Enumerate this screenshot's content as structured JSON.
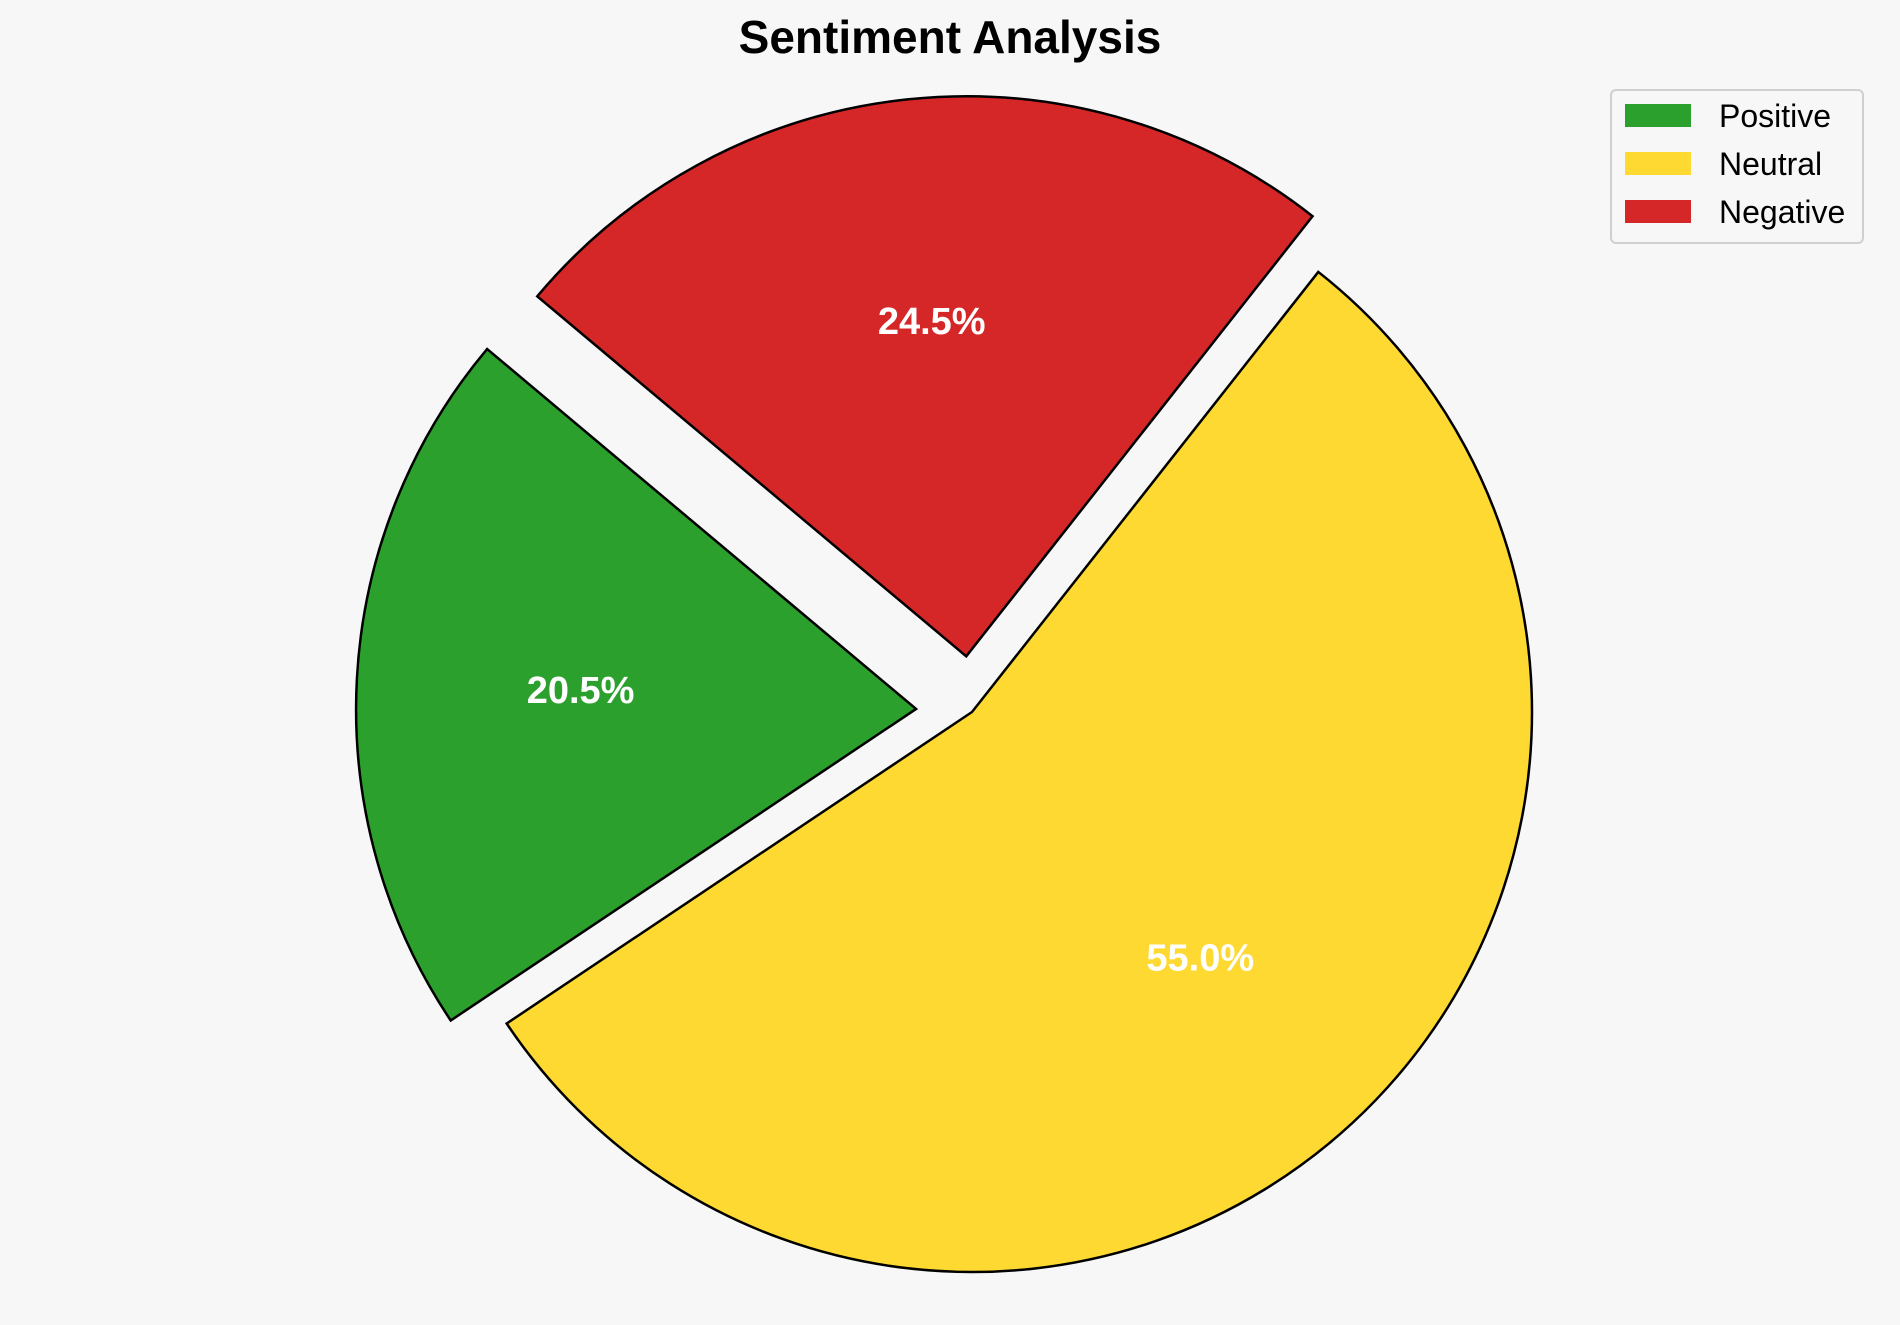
{
  "chart_data": {
    "type": "pie",
    "title": "Sentiment Analysis",
    "categories": [
      "Positive",
      "Neutral",
      "Negative"
    ],
    "values": [
      20.5,
      55.0,
      24.5
    ],
    "labels": [
      "20.5%",
      "55.0%",
      "24.5%"
    ],
    "colors": [
      "#2ca02c",
      "#fdd931",
      "#d62728"
    ],
    "start_angle_deg": 140,
    "direction": "counterclockwise",
    "explode": [
      0.1,
      0,
      0.1
    ],
    "legend_placement": "top-right"
  }
}
